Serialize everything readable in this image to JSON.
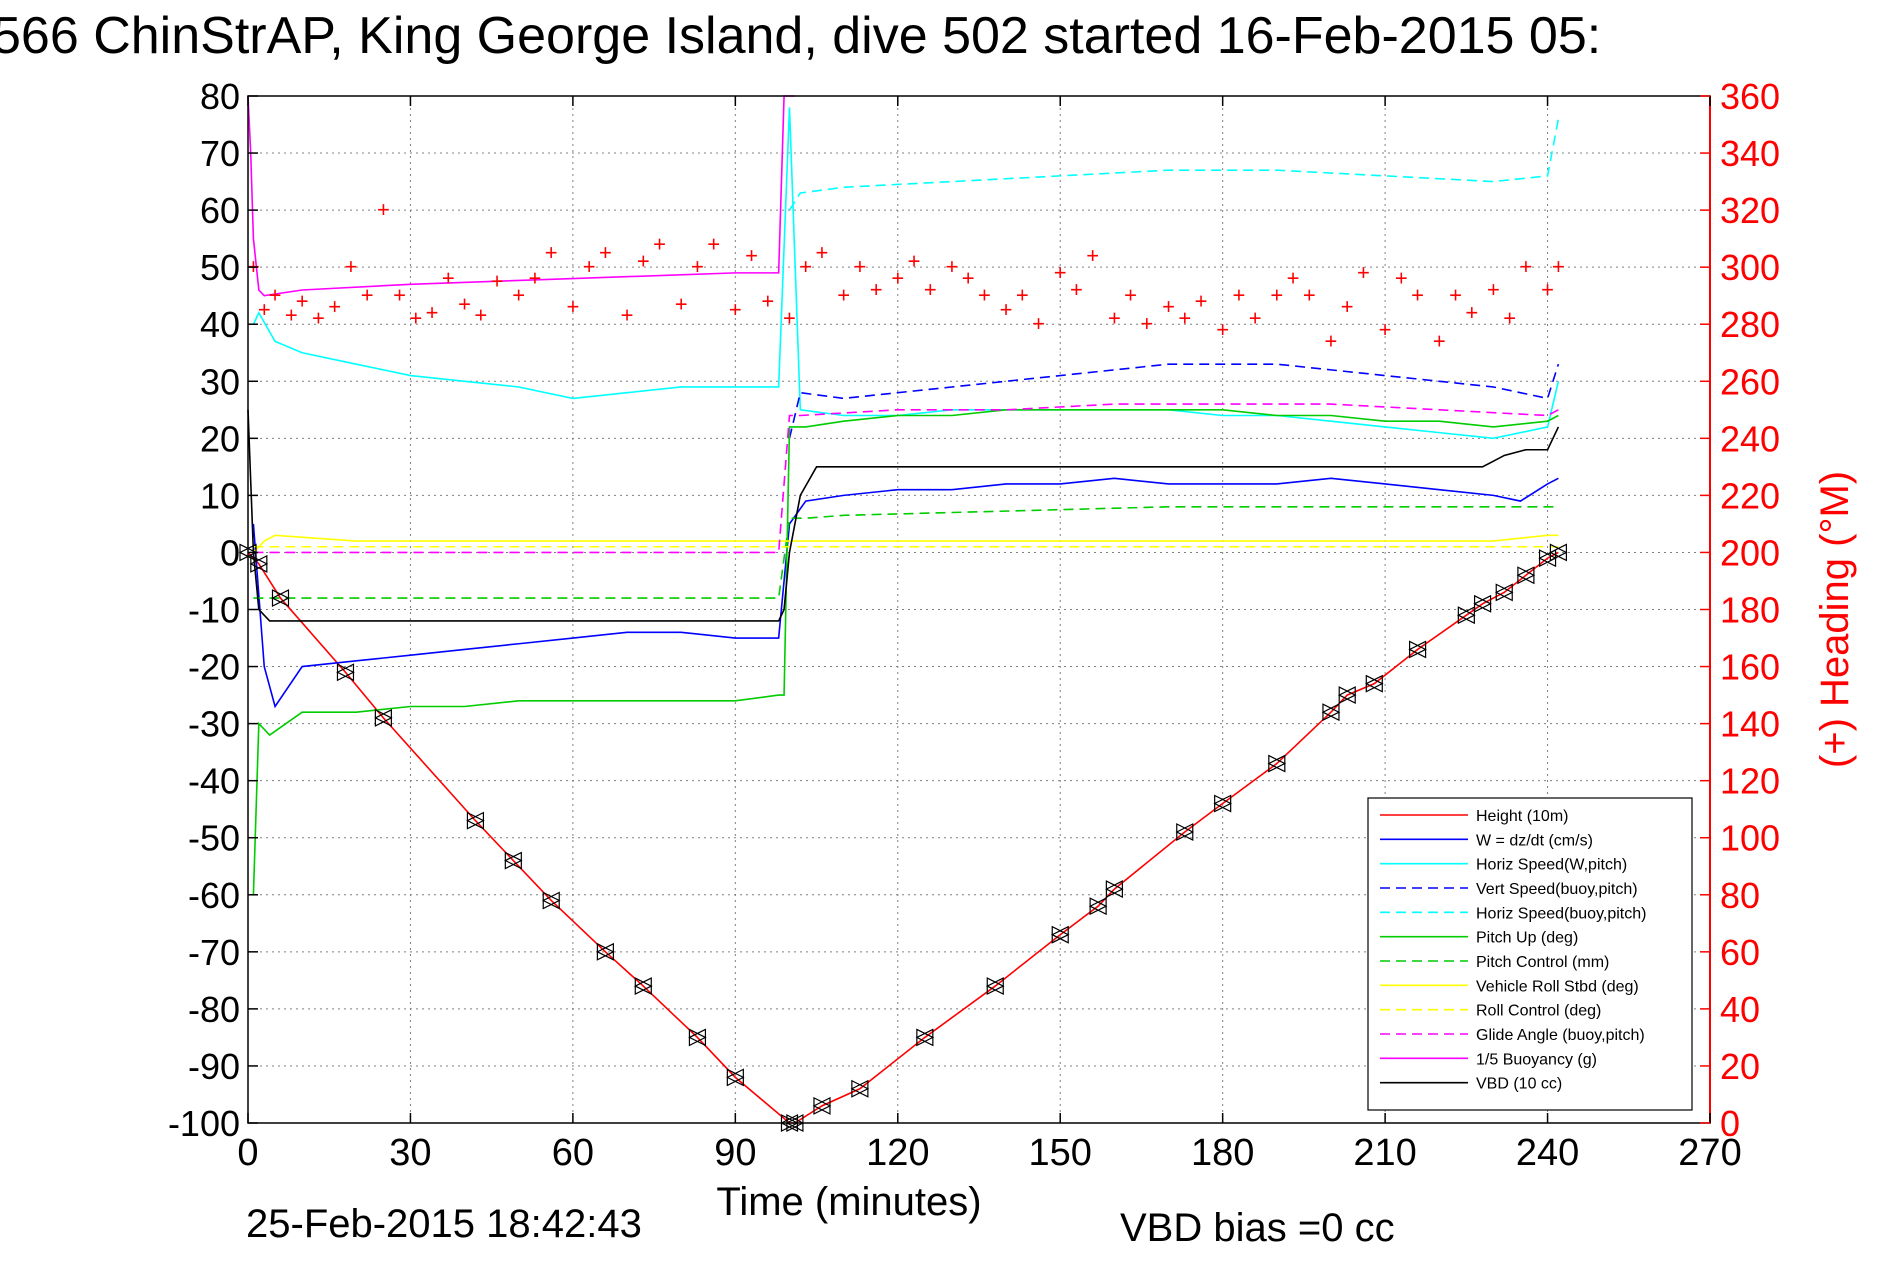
{
  "header": {
    "title": "566 ChinStrAP, King George Island, dive 502 started 16-Feb-2015 05:"
  },
  "footer": {
    "timestamp": "25-Feb-2015 18:42:43",
    "vbd_bias": "VBD bias =0 cc"
  },
  "colors": {
    "left_axis": "#000000",
    "right_axis": "#ff0000",
    "grid": "#808080"
  },
  "chart_data": {
    "type": "line",
    "title": "566 ChinStrAP, King George Island, dive 502 started 16-Feb-2015 05:",
    "xlabel": "Time (minutes)",
    "ylabel": "",
    "y2label": "(+) Heading (°M)",
    "xlim": [
      0,
      270
    ],
    "ylim": [
      -100,
      80
    ],
    "y2lim": [
      0,
      360
    ],
    "xticks": [
      0,
      30,
      60,
      90,
      120,
      150,
      180,
      210,
      240,
      270
    ],
    "yticks": [
      -100,
      -90,
      -80,
      -70,
      -60,
      -50,
      -40,
      -30,
      -20,
      -10,
      0,
      10,
      20,
      30,
      40,
      50,
      60,
      70,
      80
    ],
    "y2ticks": [
      0,
      20,
      40,
      60,
      80,
      100,
      120,
      140,
      160,
      180,
      200,
      220,
      240,
      260,
      280,
      300,
      320,
      340,
      360
    ],
    "grid": true,
    "legend_position": "bottom-right",
    "series": [
      {
        "name": "Height (10m)",
        "color": "#ff0000",
        "style": "solid",
        "axis": "left",
        "x": [
          0,
          2,
          6,
          18,
          25,
          42,
          49,
          56,
          66,
          73,
          83,
          90,
          100,
          101,
          106,
          113,
          125,
          138,
          150,
          157,
          160,
          173,
          180,
          190,
          200,
          203,
          208,
          216,
          225,
          228,
          232,
          236,
          240,
          242
        ],
        "y": [
          0,
          -2,
          -8,
          -21,
          -29,
          -47,
          -54,
          -61,
          -70,
          -76,
          -85,
          -92,
          -100,
          -100,
          -97,
          -94,
          -85,
          -76,
          -67,
          -62,
          -59,
          -49,
          -44,
          -37,
          -28,
          -25,
          -23,
          -17,
          -11,
          -9,
          -7,
          -4,
          -1,
          0
        ]
      },
      {
        "name": "W = dz/dt (cm/s)",
        "color": "#0000ff",
        "style": "solid",
        "axis": "left",
        "x": [
          1,
          3,
          5,
          10,
          20,
          30,
          40,
          50,
          60,
          70,
          80,
          90,
          98,
          100,
          103,
          110,
          120,
          130,
          140,
          150,
          160,
          170,
          180,
          190,
          200,
          210,
          220,
          230,
          235,
          240,
          242
        ],
        "y": [
          5,
          -20,
          -27,
          -20,
          -19,
          -18,
          -17,
          -16,
          -15,
          -14,
          -14,
          -15,
          -15,
          5,
          9,
          10,
          11,
          11,
          12,
          12,
          13,
          12,
          12,
          12,
          13,
          12,
          11,
          10,
          9,
          12,
          13
        ]
      },
      {
        "name": "Horiz Speed(W,pitch)",
        "color": "#00ffff",
        "style": "solid",
        "axis": "left",
        "x": [
          1,
          2,
          5,
          10,
          20,
          30,
          40,
          50,
          60,
          70,
          80,
          90,
          98,
          100,
          102,
          110,
          120,
          130,
          140,
          150,
          160,
          170,
          180,
          190,
          200,
          210,
          220,
          230,
          240,
          242
        ],
        "y": [
          40,
          42,
          37,
          35,
          33,
          31,
          30,
          29,
          27,
          28,
          29,
          29,
          29,
          78,
          25,
          24,
          24,
          25,
          25,
          25,
          25,
          25,
          24,
          24,
          23,
          22,
          21,
          20,
          22,
          30
        ]
      },
      {
        "name": "Vert Speed(buoy,pitch)",
        "color": "#0000ff",
        "style": "dashed",
        "axis": "left",
        "x": [
          100,
          102,
          110,
          120,
          130,
          140,
          150,
          160,
          170,
          180,
          190,
          200,
          210,
          220,
          230,
          240,
          242
        ],
        "y": [
          20,
          28,
          27,
          28,
          29,
          30,
          31,
          32,
          33,
          33,
          33,
          32,
          31,
          30,
          29,
          27,
          33
        ]
      },
      {
        "name": "Horiz Speed(buoy,pitch)",
        "color": "#00ffff",
        "style": "dashed",
        "axis": "left",
        "x": [
          100,
          102,
          110,
          130,
          150,
          170,
          190,
          210,
          230,
          240,
          242
        ],
        "y": [
          60,
          63,
          64,
          65,
          66,
          67,
          67,
          66,
          65,
          66,
          76
        ]
      },
      {
        "name": "Pitch Up (deg)",
        "color": "#00cc00",
        "style": "solid",
        "axis": "left",
        "x": [
          1,
          2,
          4,
          10,
          20,
          30,
          40,
          50,
          60,
          70,
          80,
          90,
          98,
          99,
          100,
          103,
          110,
          120,
          130,
          140,
          150,
          160,
          170,
          180,
          190,
          200,
          210,
          220,
          230,
          240,
          242
        ],
        "y": [
          -60,
          -30,
          -32,
          -28,
          -28,
          -27,
          -27,
          -26,
          -26,
          -26,
          -26,
          -26,
          -25,
          -25,
          22,
          22,
          23,
          24,
          24,
          25,
          25,
          25,
          25,
          25,
          24,
          24,
          23,
          23,
          22,
          23,
          24
        ]
      },
      {
        "name": "Pitch Control (mm)",
        "color": "#00cc00",
        "style": "dashed",
        "axis": "left",
        "x": [
          1,
          5,
          20,
          40,
          60,
          80,
          98,
          100,
          103,
          110,
          130,
          150,
          170,
          190,
          210,
          230,
          242
        ],
        "y": [
          -8,
          -8,
          -8,
          -8,
          -8,
          -8,
          -8,
          6,
          6,
          6.5,
          7,
          7.5,
          8,
          8,
          8,
          8,
          8
        ]
      },
      {
        "name": "Vehicle Roll Stbd (deg)",
        "color": "#ffff00",
        "style": "solid",
        "axis": "left",
        "x": [
          1,
          3,
          5,
          20,
          40,
          60,
          80,
          98,
          100,
          110,
          130,
          150,
          170,
          190,
          210,
          230,
          240,
          242
        ],
        "y": [
          0,
          2,
          3,
          2,
          2,
          2,
          2,
          2,
          2,
          2,
          2,
          2,
          2,
          2,
          2,
          2,
          3,
          3
        ]
      },
      {
        "name": "Roll Control (deg)",
        "color": "#ffff00",
        "style": "dashed",
        "axis": "left",
        "x": [
          1,
          5,
          20,
          40,
          60,
          80,
          98,
          100,
          110,
          130,
          150,
          170,
          190,
          210,
          230,
          242
        ],
        "y": [
          1,
          1,
          1,
          1,
          1,
          1,
          1,
          1,
          1,
          1,
          1,
          1,
          1,
          1,
          1,
          1
        ]
      },
      {
        "name": "Glide Angle (buoy,pitch)",
        "color": "#ff00ff",
        "style": "dashed",
        "axis": "left",
        "x": [
          1,
          20,
          40,
          60,
          80,
          98,
          100,
          102,
          120,
          140,
          160,
          180,
          200,
          220,
          240,
          242
        ],
        "y": [
          0,
          0,
          0,
          0,
          0,
          0,
          24,
          24,
          25,
          25,
          26,
          26,
          26,
          25,
          24,
          25
        ]
      },
      {
        "name": "1/5 Buoyancy (g)",
        "color": "#ff00ff",
        "style": "solid",
        "axis": "left",
        "x": [
          0,
          0.5,
          1,
          2,
          3,
          10,
          30,
          60,
          90,
          98,
          99,
          100,
          101
        ],
        "y": [
          80,
          70,
          55,
          46,
          45,
          46,
          47,
          48,
          49,
          49,
          80,
          80,
          80
        ]
      },
      {
        "name": "VBD (10 cc)",
        "color": "#000000",
        "style": "solid",
        "axis": "left",
        "x": [
          0,
          1,
          2,
          4,
          10,
          30,
          60,
          90,
          98,
          99,
          100,
          102,
          105,
          110,
          130,
          150,
          170,
          190,
          210,
          228,
          230,
          232,
          236,
          240,
          242
        ],
        "y": [
          25,
          0,
          -10,
          -12,
          -12,
          -12,
          -12,
          -12,
          -12,
          -10,
          0,
          10,
          15,
          15,
          15,
          15,
          15,
          15,
          15,
          15,
          16,
          17,
          18,
          18,
          22
        ]
      },
      {
        "name": "Heading",
        "color": "#ff0000",
        "style": "markers",
        "axis": "right",
        "x": [
          1,
          3,
          5,
          8,
          10,
          13,
          16,
          19,
          22,
          25,
          28,
          31,
          34,
          37,
          40,
          43,
          46,
          50,
          53,
          56,
          60,
          63,
          66,
          70,
          73,
          76,
          80,
          83,
          86,
          90,
          93,
          96,
          100,
          103,
          106,
          110,
          113,
          116,
          120,
          123,
          126,
          130,
          133,
          136,
          140,
          143,
          146,
          150,
          153,
          156,
          160,
          163,
          166,
          170,
          173,
          176,
          180,
          183,
          186,
          190,
          193,
          196,
          200,
          203,
          206,
          210,
          213,
          216,
          220,
          223,
          226,
          230,
          233,
          236,
          240,
          242
        ],
        "y": [
          300,
          285,
          290,
          283,
          288,
          282,
          286,
          300,
          290,
          320,
          290,
          282,
          284,
          296,
          287,
          283,
          295,
          290,
          296,
          305,
          286,
          300,
          305,
          283,
          302,
          308,
          287,
          300,
          308,
          285,
          304,
          288,
          282,
          300,
          305,
          290,
          300,
          292,
          296,
          302,
          292,
          300,
          296,
          290,
          285,
          290,
          280,
          298,
          292,
          304,
          282,
          290,
          280,
          286,
          282,
          288,
          278,
          290,
          282,
          290,
          296,
          290,
          274,
          286,
          298,
          278,
          296,
          290,
          274,
          290,
          284,
          292,
          282,
          300,
          292,
          300
        ]
      }
    ]
  }
}
